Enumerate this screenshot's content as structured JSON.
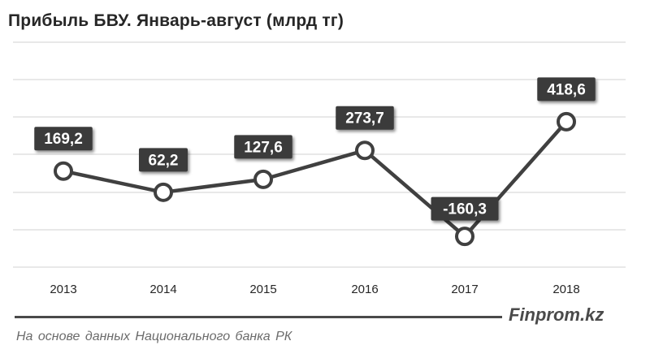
{
  "header": {
    "title": "Прибыль БВУ. Январь-август (млрд тг)"
  },
  "chart_data": {
    "type": "line",
    "title": "Прибыль БВУ. Январь-август (млрд тг)",
    "categories": [
      "2013",
      "2014",
      "2015",
      "2016",
      "2017",
      "2018"
    ],
    "series": [
      {
        "values": [
          169.2,
          62.2,
          127.6,
          273.7,
          -160.3,
          418.6
        ],
        "labels": [
          "169,2",
          "62,2",
          "127,6",
          "273,7",
          "-160,3",
          "418,6"
        ]
      }
    ],
    "xlabel": "",
    "ylabel": "",
    "ylim": [
      -300,
      700
    ],
    "grid": true,
    "legend": "none",
    "colors": {
      "line": "#404040",
      "marker_fill": "#ffffff",
      "label_bg": "#3a3a3a",
      "label_text": "#ffffff",
      "grid": "#d9d9d9"
    }
  },
  "footer": {
    "brand": "Finprom.kz",
    "source": "На основе данных Национального банка РК"
  }
}
